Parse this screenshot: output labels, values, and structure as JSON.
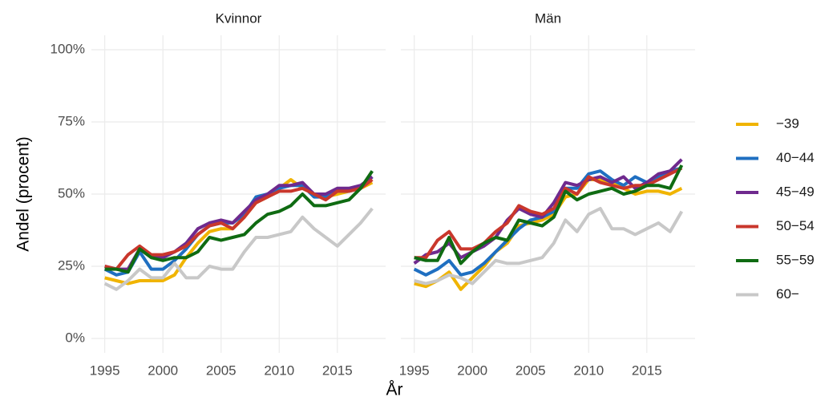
{
  "chart_data": [
    {
      "type": "line",
      "title": "Kvinnor",
      "ylabel": "Andel (procent)",
      "xlabel": "År",
      "x": [
        1995,
        1996,
        1997,
        1998,
        1999,
        2000,
        2001,
        2002,
        2003,
        2004,
        2005,
        2006,
        2007,
        2008,
        2009,
        2010,
        2011,
        2012,
        2013,
        2014,
        2015,
        2016,
        2017,
        2018
      ],
      "xlim": [
        1993.85,
        2019.15
      ],
      "xticks": [
        1995,
        2000,
        2005,
        2010,
        2015
      ],
      "ylim": [
        -5,
        105
      ],
      "yticks": [
        {
          "value": 0,
          "label": "0%"
        },
        {
          "value": 25,
          "label": "25%"
        },
        {
          "value": 50,
          "label": "50%"
        },
        {
          "value": 75,
          "label": "75%"
        },
        {
          "value": 100,
          "label": "100%"
        }
      ],
      "grid": true,
      "series": [
        {
          "name": "−39",
          "color": "#f0b400",
          "values": [
            21,
            20,
            19,
            20,
            20,
            20,
            22,
            28,
            33,
            37,
            38,
            38,
            42,
            47,
            49,
            52,
            55,
            52,
            50,
            49,
            50,
            51,
            52,
            54
          ]
        },
        {
          "name": "40−44",
          "color": "#1f6fc1",
          "values": [
            24,
            22,
            23,
            30,
            24,
            24,
            27,
            31,
            36,
            39,
            40,
            40,
            43,
            49,
            50,
            52,
            53,
            53,
            49,
            49,
            51,
            51,
            52,
            56
          ]
        },
        {
          "name": "45−49",
          "color": "#6f2a8e",
          "values": [
            25,
            24,
            24,
            31,
            28,
            28,
            30,
            33,
            38,
            40,
            41,
            40,
            44,
            48,
            50,
            53,
            53,
            54,
            50,
            50,
            52,
            52,
            53,
            56
          ]
        },
        {
          "name": "50−54",
          "color": "#c9372c",
          "values": [
            25,
            24,
            29,
            32,
            29,
            29,
            30,
            32,
            36,
            39,
            40,
            38,
            42,
            47,
            49,
            51,
            51,
            52,
            50,
            48,
            51,
            51,
            52,
            55
          ]
        },
        {
          "name": "55−59",
          "color": "#0f6b12",
          "values": [
            24,
            24,
            23,
            31,
            28,
            27,
            28,
            28,
            30,
            35,
            34,
            35,
            36,
            40,
            43,
            44,
            46,
            50,
            46,
            46,
            47,
            48,
            52,
            58
          ]
        },
        {
          "name": "60−",
          "color": "#c8c8c8",
          "values": [
            19,
            17,
            20,
            24,
            21,
            21,
            26,
            21,
            21,
            25,
            24,
            24,
            30,
            35,
            35,
            36,
            37,
            42,
            38,
            35,
            32,
            36,
            40,
            45
          ]
        }
      ]
    },
    {
      "type": "line",
      "title": "Män",
      "x": [
        1995,
        1996,
        1997,
        1998,
        1999,
        2000,
        2001,
        2002,
        2003,
        2004,
        2005,
        2006,
        2007,
        2008,
        2009,
        2010,
        2011,
        2012,
        2013,
        2014,
        2015,
        2016,
        2017,
        2018
      ],
      "xlim": [
        1993.85,
        2019.15
      ],
      "xticks": [
        1995,
        2000,
        2005,
        2010,
        2015
      ],
      "ylim": [
        -5,
        105
      ],
      "yticks": [
        0,
        25,
        50,
        75,
        100
      ],
      "grid": true,
      "series": [
        {
          "color": "#f0b400",
          "values": [
            19,
            18,
            20,
            23,
            17,
            21,
            25,
            30,
            33,
            39,
            40,
            41,
            43,
            49,
            50,
            55,
            55,
            54,
            52,
            50,
            51,
            51,
            50,
            52
          ]
        },
        {
          "color": "#1f6fc1",
          "values": [
            24,
            22,
            24,
            27,
            22,
            23,
            26,
            30,
            34,
            38,
            41,
            42,
            44,
            52,
            52,
            57,
            58,
            55,
            53,
            56,
            54,
            56,
            58,
            59
          ]
        },
        {
          "color": "#6f2a8e",
          "values": [
            26,
            29,
            30,
            33,
            28,
            30,
            32,
            35,
            41,
            45,
            43,
            42,
            47,
            54,
            53,
            55,
            56,
            54,
            56,
            52,
            54,
            57,
            58,
            62
          ]
        },
        {
          "color": "#c9372c",
          "values": [
            28,
            28,
            34,
            37,
            31,
            31,
            33,
            37,
            40,
            46,
            44,
            43,
            45,
            52,
            50,
            56,
            54,
            53,
            52,
            53,
            53,
            55,
            57,
            59
          ]
        },
        {
          "color": "#0f6b12",
          "values": [
            28,
            27,
            27,
            35,
            26,
            30,
            33,
            35,
            34,
            41,
            40,
            39,
            42,
            51,
            48,
            50,
            51,
            52,
            50,
            51,
            53,
            53,
            52,
            60
          ]
        },
        {
          "color": "#c8c8c8",
          "values": [
            20,
            19,
            20,
            22,
            21,
            19,
            23,
            27,
            26,
            26,
            27,
            28,
            33,
            41,
            37,
            43,
            45,
            38,
            38,
            36,
            38,
            40,
            37,
            44
          ]
        }
      ]
    }
  ]
}
